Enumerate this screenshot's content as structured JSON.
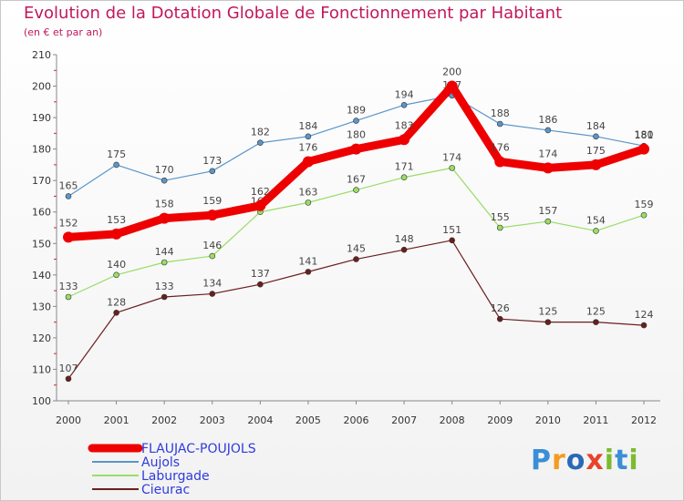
{
  "title": "Evolution de la Dotation Globale de Fonctionnement par Habitant",
  "subtitle": "(en € et par an)",
  "logo_text": "Proxiti",
  "chart_data": {
    "type": "line",
    "title": "Evolution de la Dotation Globale de Fonctionnement par Habitant",
    "subtitle": "(en € et par an)",
    "categories": [
      "2000",
      "2001",
      "2002",
      "2003",
      "2004",
      "2005",
      "2006",
      "2007",
      "2008",
      "2009",
      "2010",
      "2011",
      "2012"
    ],
    "ylim": [
      100,
      210
    ],
    "yticks": [
      100,
      110,
      120,
      130,
      140,
      150,
      160,
      170,
      180,
      190,
      200,
      210
    ],
    "grid": false,
    "legend_position": "bottom-left",
    "series": [
      {
        "name": "FLAUJAC-POUJOLS",
        "color": "#ee0000",
        "emphasis": true,
        "values": [
          152,
          153,
          158,
          159,
          162,
          176,
          180,
          183,
          200,
          176,
          174,
          175,
          180
        ]
      },
      {
        "name": "Aujols",
        "color": "#5a96c8",
        "emphasis": false,
        "values": [
          165,
          175,
          170,
          173,
          182,
          184,
          189,
          194,
          197,
          188,
          186,
          184,
          181
        ]
      },
      {
        "name": "Laburgade",
        "color": "#99dd66",
        "emphasis": false,
        "values": [
          133,
          140,
          144,
          146,
          160,
          163,
          167,
          171,
          174,
          155,
          157,
          154,
          159
        ]
      },
      {
        "name": "Cieurac",
        "color": "#6b1e1e",
        "emphasis": false,
        "values": [
          107,
          128,
          133,
          134,
          137,
          141,
          145,
          148,
          151,
          126,
          125,
          125,
          124
        ]
      }
    ]
  }
}
